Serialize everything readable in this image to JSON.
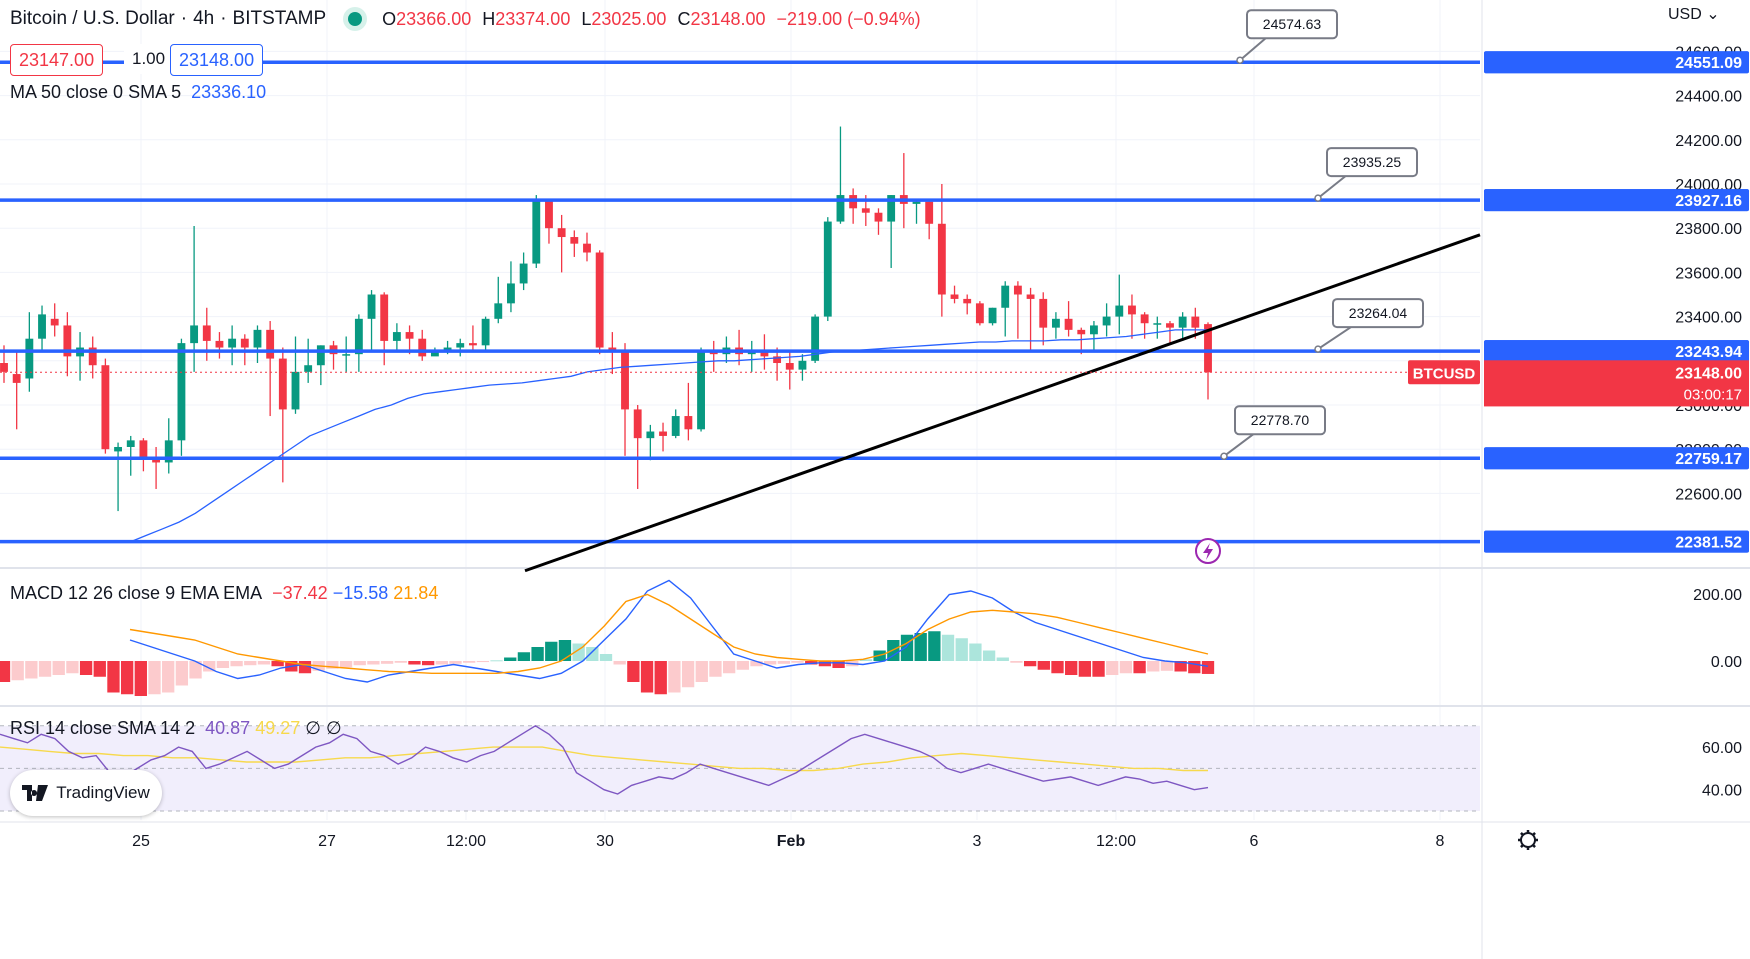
{
  "header": {
    "symbol": "Bitcoin / U.S. Dollar",
    "interval": "4h",
    "exchange": "BITSTAMP",
    "o_label": "O",
    "o": "23366.00",
    "h_label": "H",
    "h": "23374.00",
    "l_label": "L",
    "l": "23025.00",
    "c_label": "C",
    "c": "23148.00",
    "change": "−219.00 (−0.94%)"
  },
  "quote": {
    "bid": "23147.00",
    "spread": "1.00",
    "ask": "23148.00"
  },
  "currency": "USD",
  "indicators": {
    "ma_label": "MA 50 close 0 SMA 5",
    "ma_value": "23336.10",
    "macd_label": "MACD 12 26 close 9 EMA EMA",
    "macd_hist": "−37.42",
    "macd_line": "−15.58",
    "macd_signal": "21.84",
    "rsi_label": "RSI 14 close SMA 14 2",
    "rsi_value": "40.87",
    "rsi_sma": "49.27",
    "rsi_na1": "∅",
    "rsi_na2": "∅"
  },
  "brand": {
    "name": "TradingView"
  },
  "colors": {
    "up": "#089981",
    "down": "#f23645",
    "level": "#2962ff",
    "ma": "#2962ff",
    "macd": "#2962ff",
    "signal": "#ff9800",
    "rsi": "#7e57c2",
    "rsi_sma": "#f7d94c"
  },
  "chart_data": {
    "type": "candlestick",
    "y_axis_ticks": [
      "24600.00",
      "24400.00",
      "24200.00",
      "24000.00",
      "23800.00",
      "23600.00",
      "23400.00",
      "23200.00",
      "23000.00",
      "22800.00",
      "22600.00"
    ],
    "x_axis_ticks": [
      "25",
      "27",
      "12:00",
      "30",
      "Feb",
      "3",
      "12:00",
      "6",
      "8"
    ],
    "ylim": [
      22300,
      24700
    ],
    "horizontal_levels": [
      "24551.09",
      "23927.16",
      "23243.94",
      "22759.17",
      "22381.52"
    ],
    "level_callouts": [
      "24574.63",
      "23935.25",
      "23264.04",
      "22778.70"
    ],
    "last_price": {
      "symbol": "BTCUSD",
      "price": "23148.00",
      "countdown": "03:00:17"
    },
    "trendline": {
      "from": 22250,
      "to": 23770
    },
    "candles": [
      [
        23190,
        23270,
        23100,
        23150
      ],
      [
        23140,
        23250,
        22890,
        23100
      ],
      [
        23120,
        23420,
        23060,
        23300
      ],
      [
        23300,
        23450,
        23250,
        23410
      ],
      [
        23390,
        23460,
        23310,
        23360
      ],
      [
        23360,
        23420,
        23130,
        23220
      ],
      [
        23220,
        23330,
        23110,
        23260
      ],
      [
        23260,
        23310,
        23120,
        23180
      ],
      [
        23180,
        23210,
        22780,
        22800
      ],
      [
        22790,
        22830,
        22520,
        22810
      ],
      [
        22810,
        22860,
        22680,
        22840
      ],
      [
        22840,
        22850,
        22700,
        22760
      ],
      [
        22760,
        22810,
        22620,
        22740
      ],
      [
        22740,
        22940,
        22690,
        22840
      ],
      [
        22840,
        23300,
        22770,
        23280
      ],
      [
        23280,
        23810,
        23150,
        23360
      ],
      [
        23360,
        23440,
        23200,
        23290
      ],
      [
        23290,
        23330,
        23210,
        23260
      ],
      [
        23260,
        23360,
        23180,
        23300
      ],
      [
        23300,
        23320,
        23180,
        23260
      ],
      [
        23260,
        23360,
        23190,
        23340
      ],
      [
        23340,
        23380,
        22950,
        23210
      ],
      [
        23210,
        23260,
        22650,
        22980
      ],
      [
        22980,
        23310,
        22960,
        23150
      ],
      [
        23150,
        23300,
        23100,
        23180
      ],
      [
        23180,
        23270,
        23090,
        23270
      ],
      [
        23270,
        23290,
        23160,
        23230
      ],
      [
        23230,
        23310,
        23150,
        23230
      ],
      [
        23230,
        23410,
        23150,
        23390
      ],
      [
        23390,
        23520,
        23240,
        23500
      ],
      [
        23500,
        23510,
        23180,
        23290
      ],
      [
        23290,
        23370,
        23250,
        23330
      ],
      [
        23330,
        23360,
        23230,
        23300
      ],
      [
        23300,
        23340,
        23200,
        23220
      ],
      [
        23220,
        23260,
        23230,
        23250
      ],
      [
        23250,
        23290,
        23230,
        23260
      ],
      [
        23260,
        23300,
        23220,
        23280
      ],
      [
        23280,
        23360,
        23250,
        23270
      ],
      [
        23270,
        23400,
        23240,
        23390
      ],
      [
        23390,
        23580,
        23370,
        23460
      ],
      [
        23460,
        23650,
        23420,
        23550
      ],
      [
        23550,
        23690,
        23520,
        23640
      ],
      [
        23640,
        23950,
        23620,
        23930
      ],
      [
        23930,
        23930,
        23730,
        23800
      ],
      [
        23800,
        23860,
        23600,
        23760
      ],
      [
        23760,
        23790,
        23670,
        23730
      ],
      [
        23730,
        23780,
        23650,
        23690
      ],
      [
        23690,
        23700,
        23230,
        23260
      ],
      [
        23260,
        23330,
        23140,
        23250
      ],
      [
        23250,
        23280,
        22770,
        22980
      ],
      [
        22980,
        23000,
        22620,
        22850
      ],
      [
        22850,
        22910,
        22750,
        22880
      ],
      [
        22880,
        22920,
        22790,
        22860
      ],
      [
        22860,
        22980,
        22850,
        22950
      ],
      [
        22950,
        23100,
        22840,
        22890
      ],
      [
        22890,
        23260,
        22880,
        23250
      ],
      [
        23250,
        23290,
        23150,
        23230
      ],
      [
        23230,
        23310,
        23190,
        23260
      ],
      [
        23260,
        23340,
        23180,
        23230
      ],
      [
        23230,
        23290,
        23150,
        23240
      ],
      [
        23240,
        23320,
        23160,
        23220
      ],
      [
        23220,
        23260,
        23110,
        23190
      ],
      [
        23190,
        23240,
        23070,
        23160
      ],
      [
        23160,
        23230,
        23110,
        23200
      ],
      [
        23200,
        23410,
        23190,
        23400
      ],
      [
        23400,
        23850,
        23380,
        23830
      ],
      [
        23830,
        24260,
        23820,
        23950
      ],
      [
        23950,
        23980,
        23820,
        23890
      ],
      [
        23890,
        23950,
        23810,
        23870
      ],
      [
        23870,
        23890,
        23770,
        23830
      ],
      [
        23830,
        23950,
        23620,
        23950
      ],
      [
        23950,
        24140,
        23800,
        23910
      ],
      [
        23910,
        23930,
        23820,
        23920
      ],
      [
        23920,
        23930,
        23750,
        23820
      ],
      [
        23820,
        24000,
        23400,
        23500
      ],
      [
        23500,
        23540,
        23460,
        23480
      ],
      [
        23480,
        23500,
        23410,
        23460
      ],
      [
        23460,
        23470,
        23360,
        23370
      ],
      [
        23370,
        23440,
        23360,
        23440
      ],
      [
        23440,
        23560,
        23310,
        23540
      ],
      [
        23540,
        23560,
        23300,
        23500
      ],
      [
        23500,
        23530,
        23250,
        23480
      ],
      [
        23480,
        23510,
        23270,
        23350
      ],
      [
        23350,
        23420,
        23300,
        23390
      ],
      [
        23390,
        23470,
        23310,
        23340
      ],
      [
        23340,
        23350,
        23230,
        23320
      ],
      [
        23320,
        23380,
        23250,
        23360
      ],
      [
        23360,
        23460,
        23310,
        23400
      ],
      [
        23400,
        23590,
        23320,
        23450
      ],
      [
        23450,
        23500,
        23300,
        23410
      ],
      [
        23410,
        23420,
        23300,
        23370
      ],
      [
        23370,
        23400,
        23300,
        23370
      ],
      [
        23370,
        23380,
        23280,
        23350
      ],
      [
        23350,
        23420,
        23290,
        23400
      ],
      [
        23400,
        23440,
        23300,
        23350
      ],
      [
        23366,
        23374,
        23025,
        23148
      ]
    ],
    "ma": [
      22380,
      22410,
      22440,
      22470,
      22510,
      22560,
      22610,
      22660,
      22710,
      22760,
      22810,
      22860,
      22890,
      22920,
      22950,
      22980,
      23000,
      23030,
      23050,
      23060,
      23070,
      23080,
      23090,
      23095,
      23100,
      23110,
      23120,
      23130,
      23150,
      23160,
      23170,
      23175,
      23180,
      23185,
      23190,
      23195,
      23200,
      23200,
      23205,
      23210,
      23215,
      23220,
      23230,
      23240,
      23245,
      23250,
      23255,
      23260,
      23265,
      23270,
      23275,
      23280,
      23285,
      23285,
      23290,
      23290,
      23290,
      23295,
      23295,
      23300,
      23305,
      23310,
      23320,
      23330,
      23340,
      23340,
      23340
    ],
    "macd": {
      "hist_range": [
        -120,
        220
      ]
    },
    "rsi": {
      "ticks": [
        "60.00",
        "40.00"
      ],
      "range": [
        30,
        70
      ]
    }
  }
}
